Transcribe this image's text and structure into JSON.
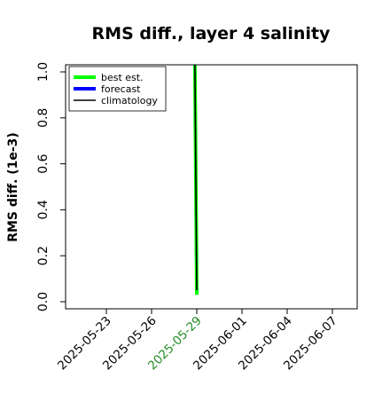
{
  "chart_data": {
    "type": "line",
    "title": "RMS diff., layer 4 salinity",
    "xlabel": "",
    "ylabel": "RMS diff. (1e-3)",
    "x_ticks": [
      "2025-05-23",
      "2025-05-26",
      "2025-05-29",
      "2025-06-01",
      "2025-06-04",
      "2025-06-07"
    ],
    "highlight_tick": "2025-05-29",
    "highlight_color": "#228B22",
    "ylim": [
      -0.02,
      1.04
    ],
    "y_ticks": [
      0.0,
      0.2,
      0.4,
      0.6,
      0.8,
      1.0
    ],
    "grid": false,
    "legend_position": "top-left",
    "series": [
      {
        "name": "best est.",
        "color": "#00ff00",
        "points": [
          {
            "x": "2025-05-28T21:00",
            "y": 1.04
          },
          {
            "x": "2025-05-29T00:00",
            "y": 0.03
          }
        ]
      },
      {
        "name": "forecast",
        "color": "#0000ff",
        "points": []
      },
      {
        "name": "climatology",
        "color": "#000000",
        "points": [
          {
            "x": "2025-05-28T21:00",
            "y": 1.04
          },
          {
            "x": "2025-05-29T00:00",
            "y": 0.05
          }
        ]
      }
    ]
  }
}
